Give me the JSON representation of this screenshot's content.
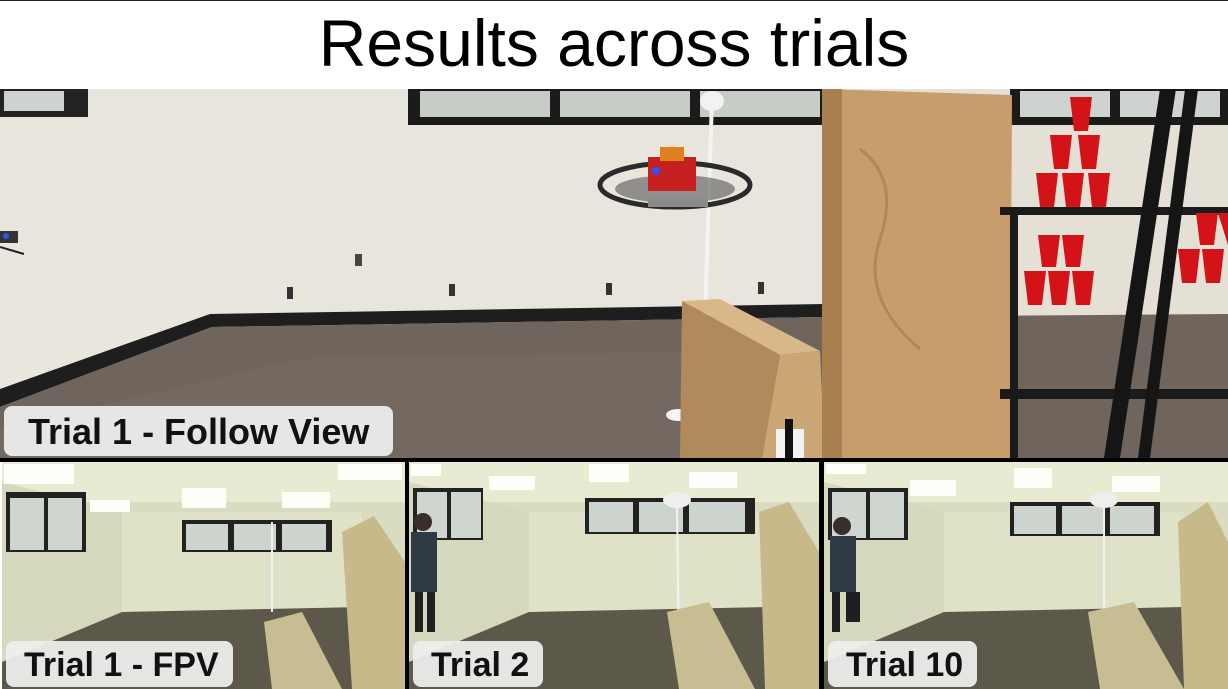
{
  "title": "Results across trials",
  "panels": {
    "main": {
      "label": "Trial 1 - Follow View"
    },
    "fpv": {
      "label": "Trial 1 - FPV"
    },
    "trial2": {
      "label": "Trial 2"
    },
    "trial10": {
      "label": "Trial 10"
    }
  },
  "colors": {
    "wall": "#e6e2d9",
    "carpet": "#6e645b",
    "cardboard": "#c59c6a",
    "cups": "#d8141a",
    "fpv_wall": "#dde0c6",
    "fpv_floor": "#5a574a"
  }
}
